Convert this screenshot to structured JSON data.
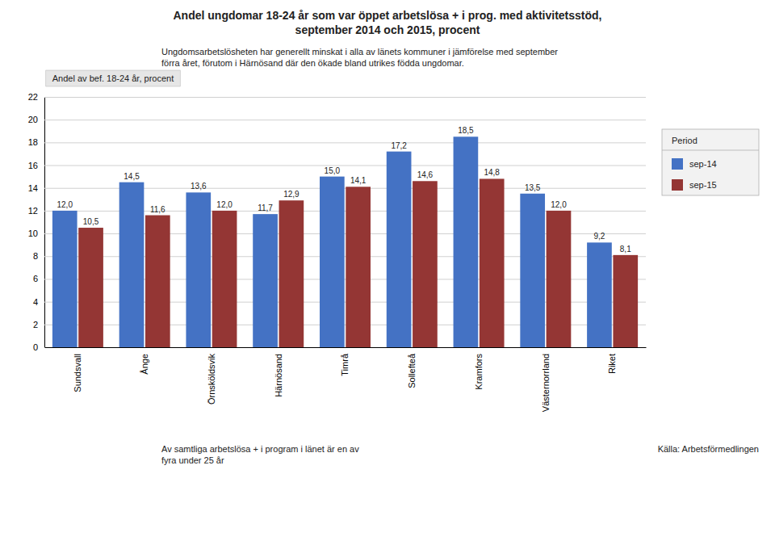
{
  "chart_data": {
    "type": "bar",
    "title": "Andel ungdomar 18-24 år som var öppet arbetslösa + i prog. med aktivitetsstöd,\nseptember 2014 och 2015, procent",
    "subtitle": "Ungdomsarbetslösheten har generellt minskat i alla av länets kommuner i jämförelse med september\nförra året, förutom i Härnösand där den ökade bland utrikes födda ungdomar.",
    "ylabel": "Andel av bef. 18-24 år, procent",
    "annotations": [
      "Av samtliga arbetslösa + i program i länet är en av\nfyra under 25 år",
      "Källa: Arbetsförmedlingen"
    ],
    "categories": [
      "Sundsvall",
      "Ånge",
      "Örnsköldsvik",
      "Härnösand",
      "Timrå",
      "Sollefteå",
      "Kramfors",
      "Västernorrland",
      "Riket"
    ],
    "series": [
      {
        "name": "sep-14",
        "color": "#4472C4",
        "values": [
          12.0,
          14.5,
          13.6,
          11.7,
          15.0,
          17.2,
          18.5,
          13.5,
          9.2
        ],
        "value_labels": [
          "12,0",
          "14,5",
          "13,6",
          "11,7",
          "15,0",
          "17,2",
          "18,5",
          "13,5",
          "9,2"
        ]
      },
      {
        "name": "sep-15",
        "color": "#943634",
        "values": [
          10.5,
          11.6,
          12.0,
          12.9,
          14.1,
          14.6,
          14.8,
          12.0,
          8.1
        ],
        "value_labels": [
          "10,5",
          "11,6",
          "12,0",
          "12,9",
          "14,1",
          "14,6",
          "14,8",
          "12,0",
          "8,1"
        ]
      }
    ],
    "legend_title": "Period",
    "legend": "right",
    "ylim": [
      0,
      22
    ],
    "yticks": [
      0,
      2,
      4,
      6,
      8,
      10,
      12,
      14,
      16,
      18,
      20,
      22
    ],
    "grid": true,
    "data_labels": true
  }
}
